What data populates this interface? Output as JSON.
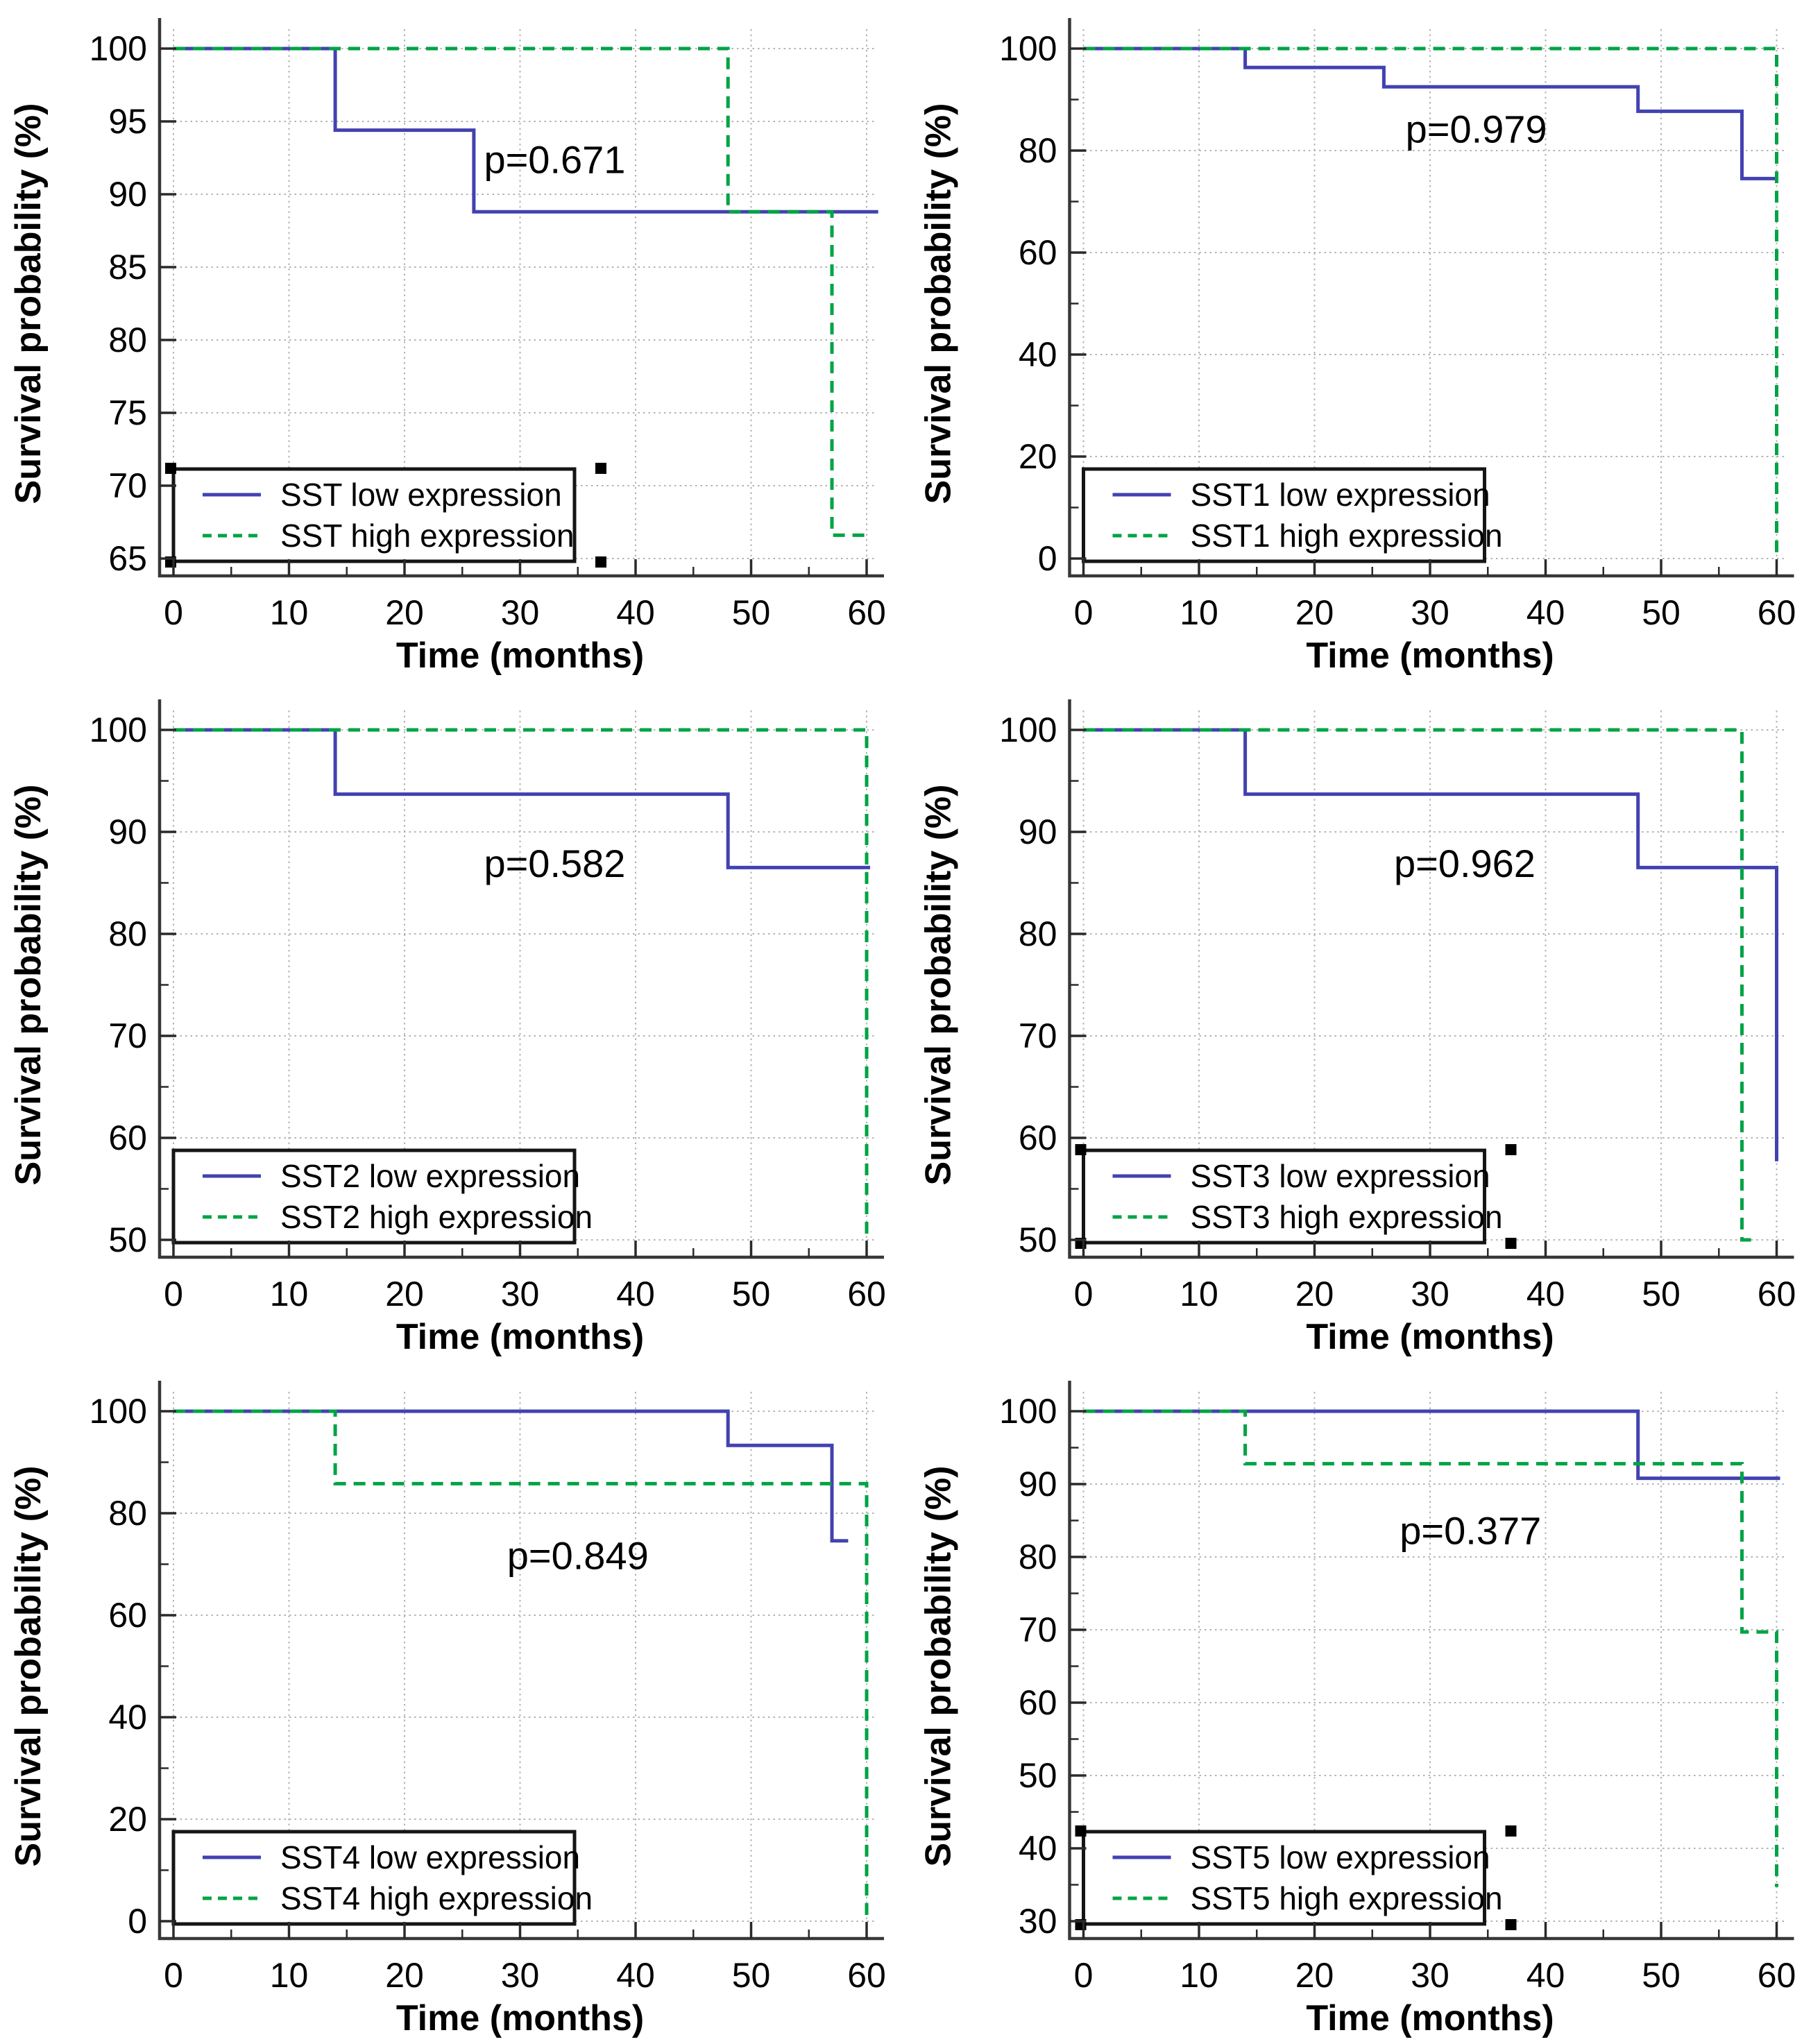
{
  "figure": {
    "description": "Kaplan-Meier survival curves for SST and SST1-SST5 expression groups",
    "x_axis_label": "Time (months)",
    "y_axis_label": "Survival probability (%)",
    "colors": {
      "low_line": "#4242b0",
      "high_line": "#00a345",
      "grid": "#b3b3b3",
      "axis": "#383838",
      "tick": "#2a2a2a",
      "text": "#000000",
      "legend_border": "#151515",
      "legend_bg": "#ffffff",
      "handle": "#000000",
      "background": "#ffffff"
    }
  },
  "chart_data": [
    {
      "type": "line",
      "subtype": "kaplan-meier-step",
      "gene": "SST",
      "title": "",
      "xlabel": "Time (months)",
      "ylabel": "Survival probability (%)",
      "xlim": [
        0,
        60
      ],
      "ylim": [
        65,
        100
      ],
      "x_ticks": [
        0,
        10,
        20,
        30,
        40,
        50,
        60
      ],
      "x_minor_ticks": [
        5,
        15,
        25,
        35,
        45,
        55
      ],
      "y_ticks": [
        65,
        70,
        75,
        80,
        85,
        90,
        95,
        100
      ],
      "y_minor_ticks": [],
      "grid": true,
      "legend_position": "bottom-left",
      "selection_handles": true,
      "annotation": {
        "label": "p=0.671",
        "x": 33,
        "y": 92.3
      },
      "series": [
        {
          "name": "SST low expression",
          "style": "solid",
          "color_key": "low_line",
          "points": [
            [
              0,
              100
            ],
            [
              14,
              100
            ],
            [
              14,
              94.4
            ],
            [
              26,
              94.4
            ],
            [
              26,
              88.8
            ],
            [
              61,
              88.8
            ]
          ]
        },
        {
          "name": "SST high expression",
          "style": "dashed",
          "color_key": "high_line",
          "points": [
            [
              0,
              100
            ],
            [
              48,
              100
            ],
            [
              48,
              88.8
            ],
            [
              57,
              88.8
            ],
            [
              57,
              66.6
            ],
            [
              60,
              66.6
            ]
          ]
        }
      ]
    },
    {
      "type": "line",
      "subtype": "kaplan-meier-step",
      "gene": "SST1",
      "title": "",
      "xlabel": "Time (months)",
      "ylabel": "Survival probability (%)",
      "xlim": [
        0,
        60
      ],
      "ylim": [
        0,
        100
      ],
      "x_ticks": [
        0,
        10,
        20,
        30,
        40,
        50,
        60
      ],
      "x_minor_ticks": [
        5,
        15,
        25,
        35,
        45,
        55
      ],
      "y_ticks": [
        0,
        20,
        40,
        60,
        80,
        100
      ],
      "y_minor_ticks": [
        10,
        30,
        50,
        70,
        90
      ],
      "grid": true,
      "legend_position": "bottom-left",
      "selection_handles": false,
      "annotation": {
        "label": "p=0.979",
        "x": 34,
        "y": 84
      },
      "series": [
        {
          "name": "SST1 low expression",
          "style": "solid",
          "color_key": "low_line",
          "points": [
            [
              0,
              100
            ],
            [
              14,
              100
            ],
            [
              14,
              96.3
            ],
            [
              26,
              96.3
            ],
            [
              26,
              92.5
            ],
            [
              48,
              92.5
            ],
            [
              48,
              87.7
            ],
            [
              57,
              87.7
            ],
            [
              57,
              74.5
            ],
            [
              60,
              74.5
            ]
          ]
        },
        {
          "name": "SST1 high expression",
          "style": "dashed",
          "color_key": "high_line",
          "points": [
            [
              0,
              100
            ],
            [
              60,
              100
            ],
            [
              60,
              0
            ]
          ]
        }
      ]
    },
    {
      "type": "line",
      "subtype": "kaplan-meier-step",
      "gene": "SST2",
      "title": "",
      "xlabel": "Time (months)",
      "ylabel": "Survival probability (%)",
      "xlim": [
        0,
        60
      ],
      "ylim": [
        50,
        100
      ],
      "x_ticks": [
        0,
        10,
        20,
        30,
        40,
        50,
        60
      ],
      "x_minor_ticks": [
        5,
        15,
        25,
        35,
        45,
        55
      ],
      "y_ticks": [
        50,
        60,
        70,
        80,
        90,
        100
      ],
      "y_minor_ticks": [
        55,
        65,
        75,
        85,
        95
      ],
      "grid": true,
      "legend_position": "bottom-left",
      "selection_handles": false,
      "annotation": {
        "label": "p=0.582",
        "x": 33,
        "y": 86.8
      },
      "series": [
        {
          "name": "SST2 low expression",
          "style": "solid",
          "color_key": "low_line",
          "points": [
            [
              0,
              100
            ],
            [
              14,
              100
            ],
            [
              14,
              93.7
            ],
            [
              48,
              93.7
            ],
            [
              48,
              86.5
            ],
            [
              60.3,
              86.5
            ]
          ]
        },
        {
          "name": "SST2 high expression",
          "style": "dashed",
          "color_key": "high_line",
          "points": [
            [
              0,
              100
            ],
            [
              60,
              100
            ],
            [
              60,
              50
            ]
          ]
        }
      ]
    },
    {
      "type": "line",
      "subtype": "kaplan-meier-step",
      "gene": "SST3",
      "title": "",
      "xlabel": "Time (months)",
      "ylabel": "Survival probability (%)",
      "xlim": [
        0,
        60
      ],
      "ylim": [
        50,
        100
      ],
      "x_ticks": [
        0,
        10,
        20,
        30,
        40,
        50,
        60
      ],
      "x_minor_ticks": [
        5,
        15,
        25,
        35,
        45,
        55
      ],
      "y_ticks": [
        50,
        60,
        70,
        80,
        90,
        100
      ],
      "y_minor_ticks": [
        55,
        65,
        75,
        85,
        95
      ],
      "grid": true,
      "legend_position": "bottom-left",
      "selection_handles": true,
      "annotation": {
        "label": "p=0.962",
        "x": 33,
        "y": 86.8
      },
      "series": [
        {
          "name": "SST3 low expression",
          "style": "solid",
          "color_key": "low_line",
          "points": [
            [
              0,
              100
            ],
            [
              14,
              100
            ],
            [
              14,
              93.7
            ],
            [
              48,
              93.7
            ],
            [
              48,
              86.5
            ],
            [
              60,
              86.5
            ],
            [
              60,
              57.7
            ]
          ]
        },
        {
          "name": "SST3 high expression",
          "style": "dashed",
          "color_key": "high_line",
          "points": [
            [
              0,
              100
            ],
            [
              57,
              100
            ],
            [
              57,
              50
            ],
            [
              58.2,
              50
            ]
          ]
        }
      ]
    },
    {
      "type": "line",
      "subtype": "kaplan-meier-step",
      "gene": "SST4",
      "title": "",
      "xlabel": "Time (months)",
      "ylabel": "Survival probability (%)",
      "xlim": [
        0,
        60
      ],
      "ylim": [
        0,
        100
      ],
      "x_ticks": [
        0,
        10,
        20,
        30,
        40,
        50,
        60
      ],
      "x_minor_ticks": [
        5,
        15,
        25,
        35,
        45,
        55
      ],
      "y_ticks": [
        0,
        20,
        40,
        60,
        80,
        100
      ],
      "y_minor_ticks": [
        10,
        30,
        50,
        70,
        90
      ],
      "grid": true,
      "legend_position": "bottom-left",
      "selection_handles": false,
      "annotation": {
        "label": "p=0.849",
        "x": 35,
        "y": 71.5
      },
      "series": [
        {
          "name": "SST4 low expression",
          "style": "solid",
          "color_key": "low_line",
          "points": [
            [
              0,
              100
            ],
            [
              48,
              100
            ],
            [
              48,
              93.3
            ],
            [
              57,
              93.3
            ],
            [
              57,
              74.6
            ],
            [
              58.4,
              74.6
            ]
          ]
        },
        {
          "name": "SST4 high expression",
          "style": "dashed",
          "color_key": "high_line",
          "points": [
            [
              0,
              100
            ],
            [
              14,
              100
            ],
            [
              14,
              85.8
            ],
            [
              60,
              85.8
            ],
            [
              60,
              0
            ]
          ]
        }
      ]
    },
    {
      "type": "line",
      "subtype": "kaplan-meier-step",
      "gene": "SST5",
      "title": "",
      "xlabel": "Time (months)",
      "ylabel": "Survival probability (%)",
      "xlim": [
        0,
        60
      ],
      "ylim": [
        30,
        100
      ],
      "x_ticks": [
        0,
        10,
        20,
        30,
        40,
        50,
        60
      ],
      "x_minor_ticks": [
        5,
        15,
        25,
        35,
        45,
        55
      ],
      "y_ticks": [
        30,
        40,
        50,
        60,
        70,
        80,
        90,
        100
      ],
      "y_minor_ticks": [
        35,
        45,
        55,
        65,
        75,
        85,
        95
      ],
      "grid": true,
      "legend_position": "bottom-left",
      "selection_handles": true,
      "annotation": {
        "label": "p=0.377",
        "x": 33.5,
        "y": 83.5
      },
      "series": [
        {
          "name": "SST5 low expression",
          "style": "solid",
          "color_key": "low_line",
          "points": [
            [
              0,
              100
            ],
            [
              48,
              100
            ],
            [
              48,
              90.8
            ],
            [
              60.3,
              90.8
            ]
          ]
        },
        {
          "name": "SST5 high expression",
          "style": "dashed",
          "color_key": "high_line",
          "points": [
            [
              0,
              100
            ],
            [
              14,
              100
            ],
            [
              14,
              92.8
            ],
            [
              57,
              92.8
            ],
            [
              57,
              69.7
            ],
            [
              60,
              69.7
            ],
            [
              60,
              34.7
            ]
          ]
        }
      ]
    }
  ]
}
